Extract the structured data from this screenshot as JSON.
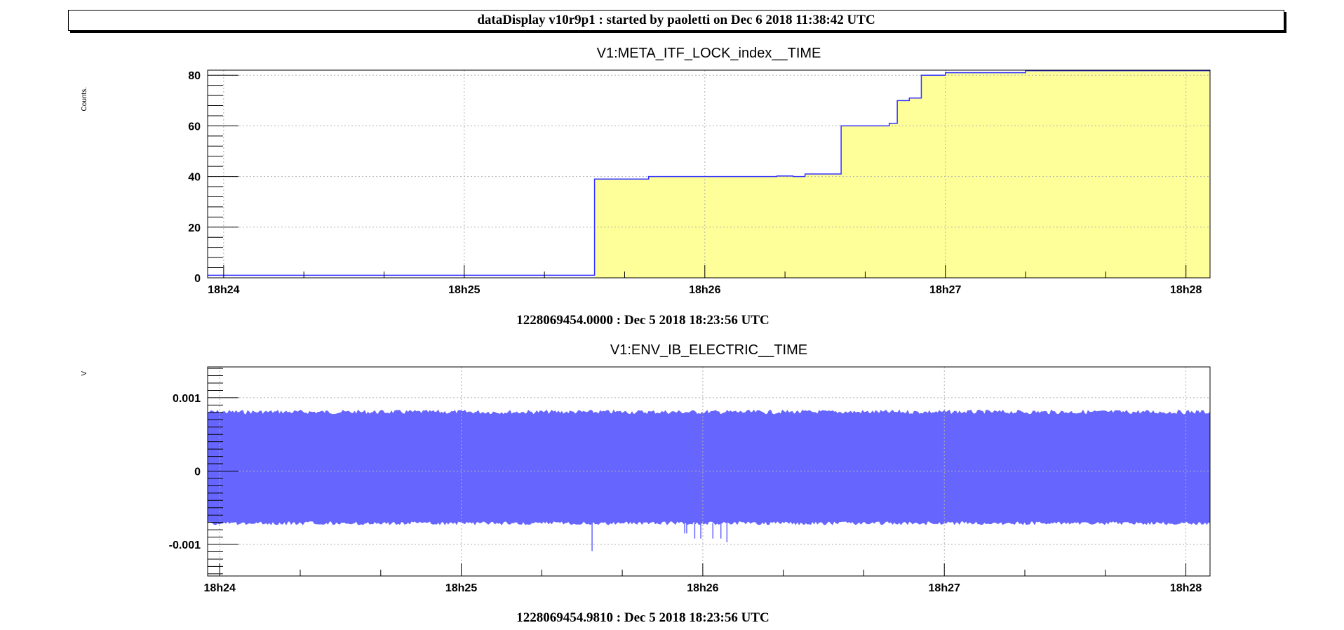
{
  "banner": "dataDisplay v10r9p1 : started by paoletti on Dec  6 2018 11:38:42 UTC",
  "colors": {
    "fill_yellow": "#ffff99",
    "line_blue": "#3333ff",
    "band_blue": "#6666ff",
    "grid": "#b0b0b0"
  },
  "chart_data": [
    {
      "type": "line",
      "title": "V1:META_ITF_LOCK_index__TIME",
      "ylabel": "Counts.",
      "xlabel": "1228069454.0000 : Dec  5 2018 18:23:56 UTC",
      "x_tick_labels": [
        "18h24",
        "18h25",
        "18h26",
        "18h27",
        "18h28"
      ],
      "y_tick_labels": [
        "0",
        "20",
        "40",
        "60",
        "80"
      ],
      "xlim_seconds": [
        -4,
        246
      ],
      "ylim": [
        0,
        82
      ],
      "grid": true,
      "fill": "yellow under step line after first jump",
      "series": [
        {
          "x_seconds": [
            -4,
            92.5,
            92.5,
            106,
            106,
            138,
            138,
            142,
            142,
            145,
            145,
            154,
            154,
            157,
            157,
            166,
            166,
            168,
            168,
            171,
            171,
            174,
            174,
            180,
            180,
            200,
            200,
            246
          ],
          "values": [
            1,
            1,
            39,
            39,
            40,
            40,
            40.2,
            40.2,
            40,
            40,
            41,
            41,
            60,
            60,
            60,
            60,
            61,
            61,
            70,
            70,
            71,
            71,
            80,
            80,
            81,
            81,
            81.8,
            81.8
          ]
        }
      ]
    },
    {
      "type": "area",
      "title": "V1:ENV_IB_ELECTRIC__TIME",
      "ylabel": "V",
      "xlabel": "1228069454.9810 : Dec  5 2018 18:23:56 UTC",
      "x_tick_labels": [
        "18h24",
        "18h25",
        "18h26",
        "18h27",
        "18h28"
      ],
      "y_tick_labels": [
        "0.001",
        "0",
        "-0.001"
      ],
      "xlim_seconds": [
        -3,
        246
      ],
      "ylim": [
        -0.00143,
        0.00142
      ],
      "grid": true,
      "band": {
        "upper": 0.00081,
        "lower": -0.00071
      },
      "spikes": [
        {
          "x_seconds": 92.5,
          "value": -0.00109
        },
        {
          "x_seconds": 115.5,
          "value": -0.00085
        },
        {
          "x_seconds": 116,
          "value": -0.00085
        },
        {
          "x_seconds": 118,
          "value": -0.00092
        },
        {
          "x_seconds": 119.5,
          "value": -0.00092
        },
        {
          "x_seconds": 122.5,
          "value": -0.00092
        },
        {
          "x_seconds": 124.5,
          "value": -0.00092
        },
        {
          "x_seconds": 126,
          "value": -0.00097
        }
      ]
    }
  ]
}
